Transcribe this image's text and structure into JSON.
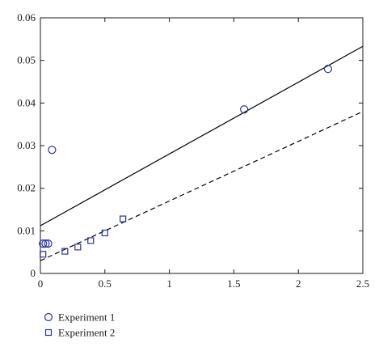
{
  "chart_data": {
    "type": "scatter",
    "title": "",
    "xlabel": "",
    "ylabel": "",
    "xlim": [
      0,
      2.5
    ],
    "ylim": [
      0,
      0.06
    ],
    "x_ticks": [
      0,
      0.5,
      1,
      1.5,
      2,
      2.5
    ],
    "x_tick_labels": [
      "0",
      "0.5",
      "1",
      "1.5",
      "2",
      "2.5"
    ],
    "y_ticks": [
      0,
      0.01,
      0.02,
      0.03,
      0.04,
      0.05,
      0.06
    ],
    "y_tick_labels": [
      "0",
      "0.01",
      "0.02",
      "0.03",
      "0.04",
      "0.05",
      "0.06"
    ],
    "grid": false,
    "legend_position": "bottom-left, below plot",
    "series": [
      {
        "name": "Experiment 1",
        "marker": "circle",
        "color": "#2b2fa8",
        "x": [
          0.02,
          0.04,
          0.06,
          0.09,
          1.58,
          2.23
        ],
        "y": [
          0.007,
          0.007,
          0.007,
          0.029,
          0.0385,
          0.048
        ]
      },
      {
        "name": "Experiment 2",
        "marker": "square",
        "color": "#2b2fa8",
        "x": [
          0.02,
          0.19,
          0.29,
          0.39,
          0.5,
          0.64
        ],
        "y": [
          0.0045,
          0.0052,
          0.0062,
          0.0077,
          0.0095,
          0.0128
        ]
      }
    ],
    "fit_lines": [
      {
        "style": "solid",
        "color": "#000000",
        "x": [
          0,
          2.5
        ],
        "y": [
          0.0112,
          0.0533
        ]
      },
      {
        "style": "dashed",
        "color": "#000000",
        "x": [
          0,
          2.5
        ],
        "y": [
          0.003,
          0.038
        ]
      }
    ]
  }
}
